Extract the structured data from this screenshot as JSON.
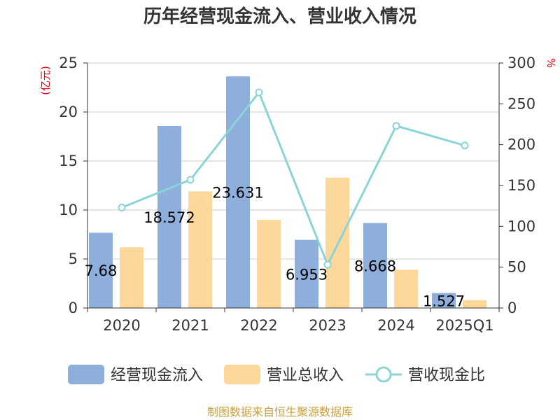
{
  "chart_data": {
    "type": "bar",
    "title": "历年经营现金流入、营业收入情况",
    "categories": [
      "2020",
      "2021",
      "2022",
      "2023",
      "2024",
      "2025Q1"
    ],
    "left_axis": {
      "unit": "(亿元)",
      "ylim": [
        0,
        25
      ],
      "ticks": [
        0,
        5,
        10,
        15,
        20,
        25
      ]
    },
    "right_axis": {
      "unit": "%",
      "ylim": [
        0,
        300
      ],
      "ticks": [
        0,
        50,
        100,
        150,
        200,
        250,
        300
      ]
    },
    "series": [
      {
        "name": "经营现金流入",
        "type": "bar",
        "axis": "left",
        "color": "#8eaedb",
        "values": [
          7.68,
          18.572,
          23.631,
          6.953,
          8.668,
          1.527
        ],
        "labels": [
          "7.68",
          "18.572",
          "23.631",
          "6.953",
          "8.668",
          "1.527"
        ]
      },
      {
        "name": "营业总收入",
        "type": "bar",
        "axis": "left",
        "color": "#fdd89a",
        "values": [
          6.2,
          11.9,
          9.0,
          13.3,
          3.9,
          0.8
        ]
      },
      {
        "name": "营收现金比",
        "type": "line",
        "axis": "right",
        "color": "#8ad4d8",
        "values": [
          123,
          157,
          264,
          53,
          223,
          199
        ]
      }
    ],
    "grid": true,
    "legend": "bottom"
  },
  "footer": {
    "source": "制图数据来自恒生聚源数据库"
  }
}
